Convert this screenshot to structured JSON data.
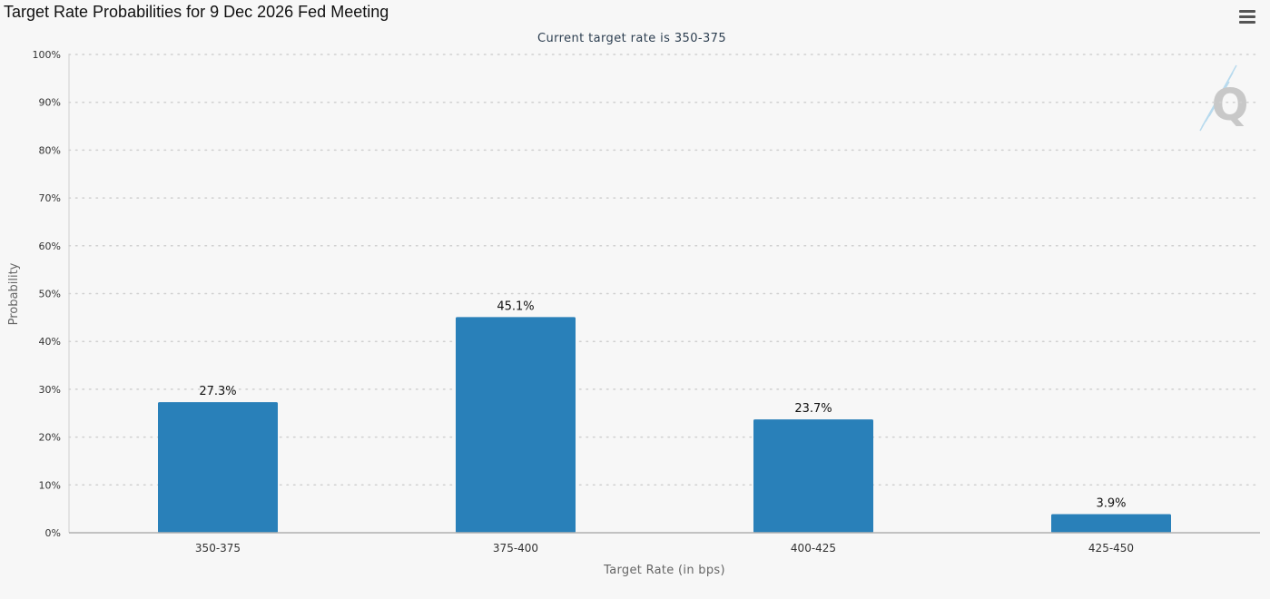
{
  "header": {
    "title": "Target Rate Probabilities for 9 Dec 2026 Fed Meeting",
    "menu_icon": "hamburger-menu-icon",
    "logo_icon": "q-logo-icon"
  },
  "chart_data": {
    "type": "bar",
    "title": "Target Rate Probabilities for 9 Dec 2026 Fed Meeting",
    "subtitle": "Current target rate is 350-375",
    "xlabel": "Target Rate (in bps)",
    "ylabel": "Probability",
    "categories": [
      "350-375",
      "375-400",
      "400-425",
      "425-450"
    ],
    "values": [
      27.3,
      45.1,
      23.7,
      3.9
    ],
    "data_labels": [
      "27.3%",
      "45.1%",
      "23.7%",
      "3.9%"
    ],
    "ylim": [
      0,
      100
    ],
    "yticks": [
      0,
      10,
      20,
      30,
      40,
      50,
      60,
      70,
      80,
      90,
      100
    ],
    "ytick_labels": [
      "0%",
      "10%",
      "20%",
      "30%",
      "40%",
      "50%",
      "60%",
      "70%",
      "80%",
      "90%",
      "100%"
    ],
    "grid": true,
    "legend": "none",
    "colors": {
      "bar": "#2980b9",
      "grid": "#d0d0d0",
      "axis": "#b0b0b0",
      "text": "#333333",
      "subtitle": "#2c3e50",
      "axis_title": "#666666"
    }
  }
}
